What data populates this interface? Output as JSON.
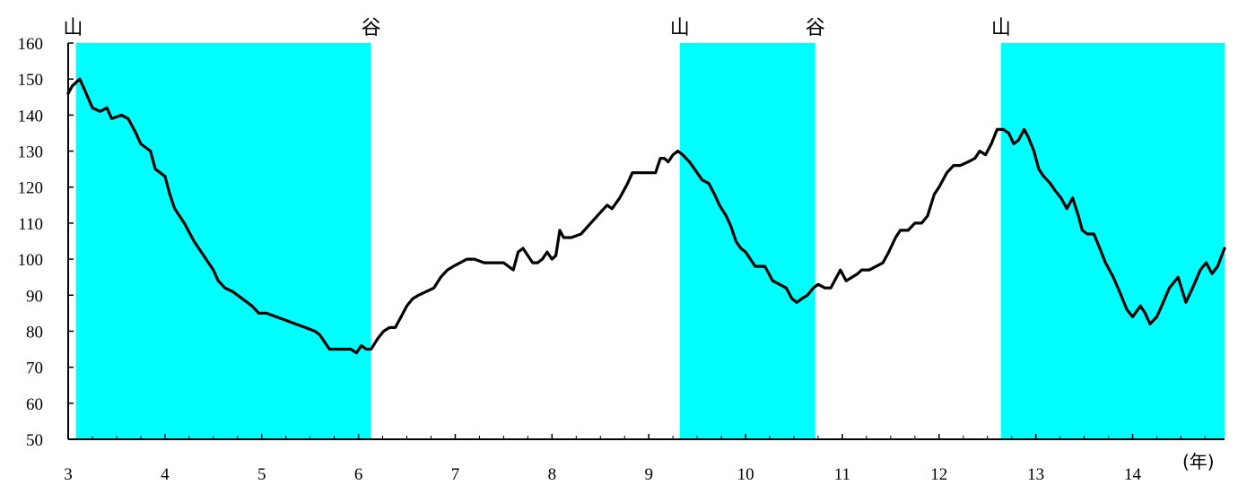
{
  "chart_data": {
    "type": "line",
    "xlabel": "",
    "ylabel": "",
    "x_unit_label": "(年)",
    "xlim": [
      3.0,
      14.95
    ],
    "ylim": [
      50,
      160
    ],
    "y_ticks": [
      50,
      60,
      70,
      80,
      90,
      100,
      110,
      120,
      130,
      140,
      150,
      160
    ],
    "x_ticks": [
      3,
      4,
      5,
      6,
      7,
      8,
      9,
      10,
      11,
      12,
      13,
      14
    ],
    "grid": false,
    "band_color": "#00ffff",
    "line_color": "#000000",
    "recession_bands": [
      [
        3.08,
        6.13
      ],
      [
        9.32,
        10.72
      ],
      [
        12.64,
        14.95
      ]
    ],
    "phase_markers": [
      {
        "label": "山",
        "x": 3.05
      },
      {
        "label": "谷",
        "x": 6.13
      },
      {
        "label": "山",
        "x": 9.32
      },
      {
        "label": "谷",
        "x": 10.72
      },
      {
        "label": "山",
        "x": 12.64
      }
    ],
    "series": [
      {
        "points": [
          [
            3.0,
            146
          ],
          [
            3.04,
            148
          ],
          [
            3.08,
            149
          ],
          [
            3.12,
            150
          ],
          [
            3.17,
            147
          ],
          [
            3.25,
            142
          ],
          [
            3.33,
            141
          ],
          [
            3.4,
            142
          ],
          [
            3.45,
            139
          ],
          [
            3.55,
            140
          ],
          [
            3.62,
            139
          ],
          [
            3.7,
            135
          ],
          [
            3.75,
            132
          ],
          [
            3.85,
            130
          ],
          [
            3.9,
            125
          ],
          [
            4.0,
            123
          ],
          [
            4.05,
            118
          ],
          [
            4.1,
            114
          ],
          [
            4.2,
            110
          ],
          [
            4.3,
            105
          ],
          [
            4.4,
            101
          ],
          [
            4.5,
            97
          ],
          [
            4.55,
            94
          ],
          [
            4.62,
            92
          ],
          [
            4.7,
            91
          ],
          [
            4.8,
            89
          ],
          [
            4.9,
            87
          ],
          [
            4.97,
            85
          ],
          [
            5.05,
            85
          ],
          [
            5.15,
            84
          ],
          [
            5.25,
            83
          ],
          [
            5.35,
            82
          ],
          [
            5.45,
            81
          ],
          [
            5.55,
            80
          ],
          [
            5.6,
            79
          ],
          [
            5.65,
            77
          ],
          [
            5.7,
            75
          ],
          [
            5.85,
            75
          ],
          [
            5.92,
            75
          ],
          [
            5.98,
            74
          ],
          [
            6.03,
            76
          ],
          [
            6.08,
            75
          ],
          [
            6.13,
            75
          ],
          [
            6.2,
            78
          ],
          [
            6.26,
            80
          ],
          [
            6.32,
            81
          ],
          [
            6.38,
            81
          ],
          [
            6.44,
            84
          ],
          [
            6.5,
            87
          ],
          [
            6.56,
            89
          ],
          [
            6.62,
            90
          ],
          [
            6.7,
            91
          ],
          [
            6.78,
            92
          ],
          [
            6.85,
            95
          ],
          [
            6.92,
            97
          ],
          [
            6.98,
            98
          ],
          [
            7.05,
            99
          ],
          [
            7.12,
            100
          ],
          [
            7.2,
            100
          ],
          [
            7.3,
            99
          ],
          [
            7.4,
            99
          ],
          [
            7.45,
            99
          ],
          [
            7.5,
            99
          ],
          [
            7.55,
            98
          ],
          [
            7.6,
            97
          ],
          [
            7.65,
            102
          ],
          [
            7.7,
            103
          ],
          [
            7.75,
            101
          ],
          [
            7.8,
            99
          ],
          [
            7.85,
            99
          ],
          [
            7.9,
            100
          ],
          [
            7.95,
            102
          ],
          [
            8.0,
            100
          ],
          [
            8.04,
            101
          ],
          [
            8.08,
            108
          ],
          [
            8.12,
            106
          ],
          [
            8.2,
            106
          ],
          [
            8.3,
            107
          ],
          [
            8.4,
            110
          ],
          [
            8.5,
            113
          ],
          [
            8.57,
            115
          ],
          [
            8.62,
            114
          ],
          [
            8.7,
            117
          ],
          [
            8.78,
            121
          ],
          [
            8.83,
            124
          ],
          [
            8.9,
            124
          ],
          [
            9.0,
            124
          ],
          [
            9.07,
            124
          ],
          [
            9.12,
            128
          ],
          [
            9.16,
            128
          ],
          [
            9.2,
            127
          ],
          [
            9.25,
            129
          ],
          [
            9.3,
            130
          ],
          [
            9.35,
            129
          ],
          [
            9.42,
            127
          ],
          [
            9.5,
            124
          ],
          [
            9.55,
            122
          ],
          [
            9.62,
            121
          ],
          [
            9.68,
            118
          ],
          [
            9.73,
            115
          ],
          [
            9.8,
            112
          ],
          [
            9.85,
            109
          ],
          [
            9.9,
            105
          ],
          [
            9.95,
            103
          ],
          [
            10.0,
            102
          ],
          [
            10.05,
            100
          ],
          [
            10.1,
            98
          ],
          [
            10.2,
            98
          ],
          [
            10.28,
            94
          ],
          [
            10.35,
            93
          ],
          [
            10.42,
            92
          ],
          [
            10.48,
            89
          ],
          [
            10.53,
            88
          ],
          [
            10.58,
            89
          ],
          [
            10.64,
            90
          ],
          [
            10.7,
            92
          ],
          [
            10.75,
            93
          ],
          [
            10.82,
            92
          ],
          [
            10.88,
            92
          ],
          [
            10.92,
            94
          ],
          [
            10.98,
            97
          ],
          [
            11.04,
            94
          ],
          [
            11.1,
            95
          ],
          [
            11.16,
            96
          ],
          [
            11.2,
            97
          ],
          [
            11.28,
            97
          ],
          [
            11.35,
            98
          ],
          [
            11.42,
            99
          ],
          [
            11.48,
            102
          ],
          [
            11.55,
            106
          ],
          [
            11.6,
            108
          ],
          [
            11.68,
            108
          ],
          [
            11.75,
            110
          ],
          [
            11.82,
            110
          ],
          [
            11.88,
            112
          ],
          [
            11.95,
            118
          ],
          [
            12.0,
            120
          ],
          [
            12.08,
            124
          ],
          [
            12.15,
            126
          ],
          [
            12.22,
            126
          ],
          [
            12.3,
            127
          ],
          [
            12.37,
            128
          ],
          [
            12.42,
            130
          ],
          [
            12.48,
            129
          ],
          [
            12.54,
            132
          ],
          [
            12.6,
            136
          ],
          [
            12.66,
            136
          ],
          [
            12.72,
            135
          ],
          [
            12.77,
            132
          ],
          [
            12.82,
            133
          ],
          [
            12.88,
            136
          ],
          [
            12.92,
            134
          ],
          [
            12.98,
            130
          ],
          [
            13.03,
            125
          ],
          [
            13.08,
            123
          ],
          [
            13.15,
            121
          ],
          [
            13.2,
            119
          ],
          [
            13.26,
            117
          ],
          [
            13.32,
            114
          ],
          [
            13.38,
            117
          ],
          [
            13.44,
            112
          ],
          [
            13.48,
            108
          ],
          [
            13.53,
            107
          ],
          [
            13.6,
            107
          ],
          [
            13.66,
            103
          ],
          [
            13.72,
            99
          ],
          [
            13.8,
            95
          ],
          [
            13.88,
            90
          ],
          [
            13.94,
            86
          ],
          [
            14.0,
            84
          ],
          [
            14.08,
            87
          ],
          [
            14.13,
            85
          ],
          [
            14.18,
            82
          ],
          [
            14.25,
            84
          ],
          [
            14.3,
            87
          ],
          [
            14.38,
            92
          ],
          [
            14.47,
            95
          ],
          [
            14.55,
            88
          ],
          [
            14.62,
            92
          ],
          [
            14.7,
            97
          ],
          [
            14.76,
            99
          ],
          [
            14.82,
            96
          ],
          [
            14.88,
            98
          ],
          [
            14.92,
            101
          ],
          [
            14.95,
            103
          ]
        ]
      }
    ]
  }
}
